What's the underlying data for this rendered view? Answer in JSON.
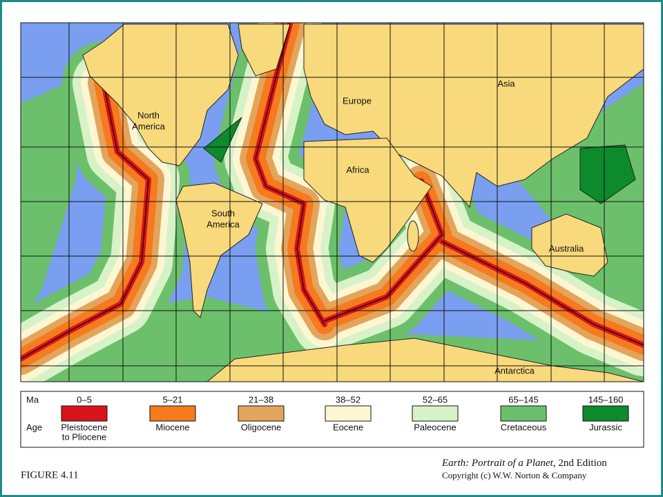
{
  "map": {
    "labels": [
      {
        "lines": [
          "North",
          "America"
        ]
      },
      {
        "lines": [
          "Europe"
        ]
      },
      {
        "lines": [
          "Asia"
        ]
      },
      {
        "lines": [
          "Africa"
        ]
      },
      {
        "lines": [
          "South",
          "America"
        ]
      },
      {
        "lines": [
          "Australia"
        ]
      },
      {
        "lines": [
          "Antarctica"
        ]
      }
    ]
  },
  "legend": {
    "ma_label": "Ma",
    "age_label": "Age",
    "entries": [
      {
        "range": "0–5",
        "age": [
          "Pleistocene",
          "to Pliocene"
        ],
        "color": "#d7141b"
      },
      {
        "range": "5–21",
        "age": [
          "Miocene"
        ],
        "color": "#f57b1e"
      },
      {
        "range": "21–38",
        "age": [
          "Oligocene"
        ],
        "color": "#e3a55c"
      },
      {
        "range": "38–52",
        "age": [
          "Eocene"
        ],
        "color": "#fdf6d2"
      },
      {
        "range": "52–65",
        "age": [
          "Paleocene"
        ],
        "color": "#d8f2c8"
      },
      {
        "range": "65–145",
        "age": [
          "Cretaceous"
        ],
        "color": "#6cc06c"
      },
      {
        "range": "145–160",
        "age": [
          "Jurassic"
        ],
        "color": "#0c8a2c"
      }
    ]
  },
  "caption": {
    "figure": "FIGURE 4.11",
    "book_title": "Earth: Portrait of a Planet",
    "edition": ", 2nd Edition",
    "copyright": "Copyright (c) W.W. Norton & Company"
  }
}
